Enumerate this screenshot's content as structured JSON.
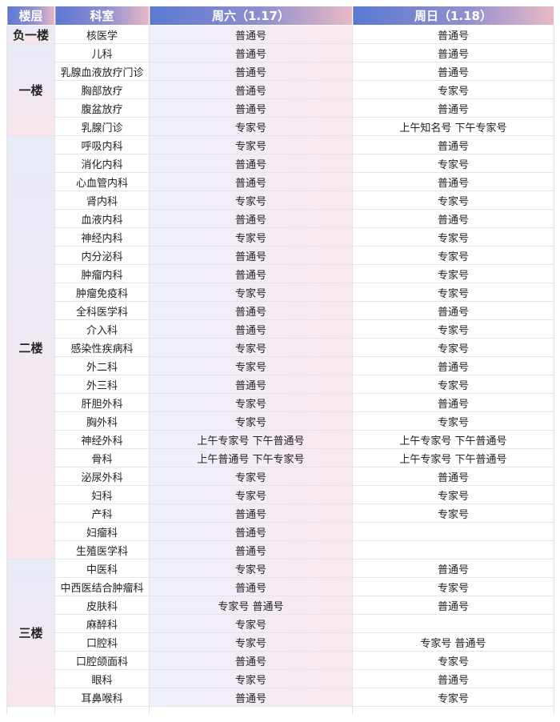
{
  "header": {
    "floor": "楼层",
    "dept": "科室",
    "sat": "周六（1.17）",
    "sun": "周日（1.18）"
  },
  "floors": [
    {
      "name": "负一楼",
      "rows": [
        [
          "核医学",
          "普通号",
          "普通号"
        ]
      ]
    },
    {
      "name": "一楼",
      "rows": [
        [
          "儿科",
          "普通号",
          "普通号"
        ],
        [
          "乳腺血液放疗门诊",
          "普通号",
          "普通号"
        ],
        [
          "胸部放疗",
          "普通号",
          "专家号"
        ],
        [
          "腹盆放疗",
          "普通号",
          "普通号"
        ],
        [
          "乳腺门诊",
          "专家号",
          "上午知名号 下午专家号"
        ]
      ]
    },
    {
      "name": "二楼",
      "rows": [
        [
          "呼吸内科",
          "专家号",
          "普通号"
        ],
        [
          "消化内科",
          "普通号",
          "专家号"
        ],
        [
          "心血管内科",
          "普通号",
          "普通号"
        ],
        [
          "肾内科",
          "专家号",
          "专家号"
        ],
        [
          "血液内科",
          "普通号",
          "普通号"
        ],
        [
          "神经内科",
          "专家号",
          "专家号"
        ],
        [
          "内分泌科",
          "普通号",
          "专家号"
        ],
        [
          "肿瘤内科",
          "普通号",
          "专家号"
        ],
        [
          "肿瘤免疫科",
          "专家号",
          "专家号"
        ],
        [
          "全科医学科",
          "普通号",
          "普通号"
        ],
        [
          "介入科",
          "普通号",
          "专家号"
        ],
        [
          "感染性疾病科",
          "专家号",
          "专家号"
        ],
        [
          "外二科",
          "专家号",
          "普通号"
        ],
        [
          "外三科",
          "普通号",
          "专家号"
        ],
        [
          "肝胆外科",
          "专家号",
          "普通号"
        ],
        [
          "胸外科",
          "专家号",
          "专家号"
        ],
        [
          "神经外科",
          "上午专家号 下午普通号",
          "上午专家号 下午普通号"
        ],
        [
          "骨科",
          "上午普通号 下午专家号",
          "上午专家号 下午普通号"
        ],
        [
          "泌尿外科",
          "专家号",
          "普通号"
        ],
        [
          "妇科",
          "专家号",
          "专家号"
        ],
        [
          "产科",
          "普通号",
          "专家号"
        ],
        [
          "妇瘤科",
          "普通号",
          ""
        ],
        [
          "生殖医学科",
          "普通号",
          ""
        ]
      ]
    },
    {
      "name": "三楼",
      "rows": [
        [
          "中医科",
          "专家号",
          "普通号"
        ],
        [
          "中西医结合肿瘤科",
          "普通号",
          "专家号"
        ],
        [
          "皮肤科",
          "专家号 普通号",
          "普通号"
        ],
        [
          "麻醉科",
          "专家号",
          ""
        ],
        [
          "口腔科",
          "专家号",
          "专家号 普通号"
        ],
        [
          "口腔颌面科",
          "普通号",
          "专家号"
        ],
        [
          "眼科",
          "专家号",
          "普通号"
        ],
        [
          "耳鼻喉科",
          "普通号",
          "专家号"
        ]
      ]
    }
  ]
}
